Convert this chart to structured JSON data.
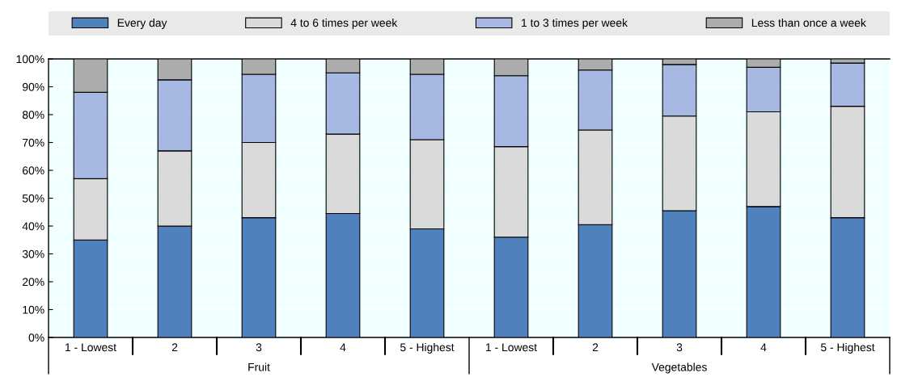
{
  "chart_data": {
    "type": "bar",
    "stacked": true,
    "categories": [
      "1 - Lowest",
      "2",
      "3",
      "4",
      "5 - Highest",
      "1 - Lowest",
      "2",
      "3",
      "4",
      "5 - Highest"
    ],
    "annotations": [
      "Fruit",
      "Vegetables"
    ],
    "series": [
      {
        "name": "Every day",
        "color": "#4f81bd",
        "values": [
          35,
          40,
          43,
          44.5,
          39,
          36,
          40.5,
          45.5,
          47,
          43
        ]
      },
      {
        "name": "4 to 6 times per week",
        "color": "#dadada",
        "values": [
          22,
          27,
          27,
          28.5,
          32,
          32.5,
          34,
          34,
          34,
          40
        ]
      },
      {
        "name": "1 to 3 times per week",
        "color": "#a7b8e3",
        "values": [
          31,
          25.5,
          24.5,
          22,
          23.5,
          25.5,
          21.5,
          18.5,
          16,
          15.5
        ]
      },
      {
        "name": "Less than once a week",
        "color": "#acacac",
        "values": [
          12,
          7.5,
          5.5,
          5,
          5.5,
          6,
          4,
          2,
          3,
          1.5
        ]
      }
    ],
    "ylim": [
      0,
      100
    ],
    "yticks": [
      {
        "value": 0,
        "label": "0%"
      },
      {
        "value": 10,
        "label": "10%"
      },
      {
        "value": 20,
        "label": "20%"
      },
      {
        "value": 30,
        "label": "30%"
      },
      {
        "value": 40,
        "label": "40%"
      },
      {
        "value": 50,
        "label": "50%"
      },
      {
        "value": 60,
        "label": "60%"
      },
      {
        "value": 70,
        "label": "70%"
      },
      {
        "value": 80,
        "label": "80%"
      },
      {
        "value": 90,
        "label": "90%"
      },
      {
        "value": 100,
        "label": "100%"
      }
    ],
    "grid": "y",
    "legend": "top"
  }
}
